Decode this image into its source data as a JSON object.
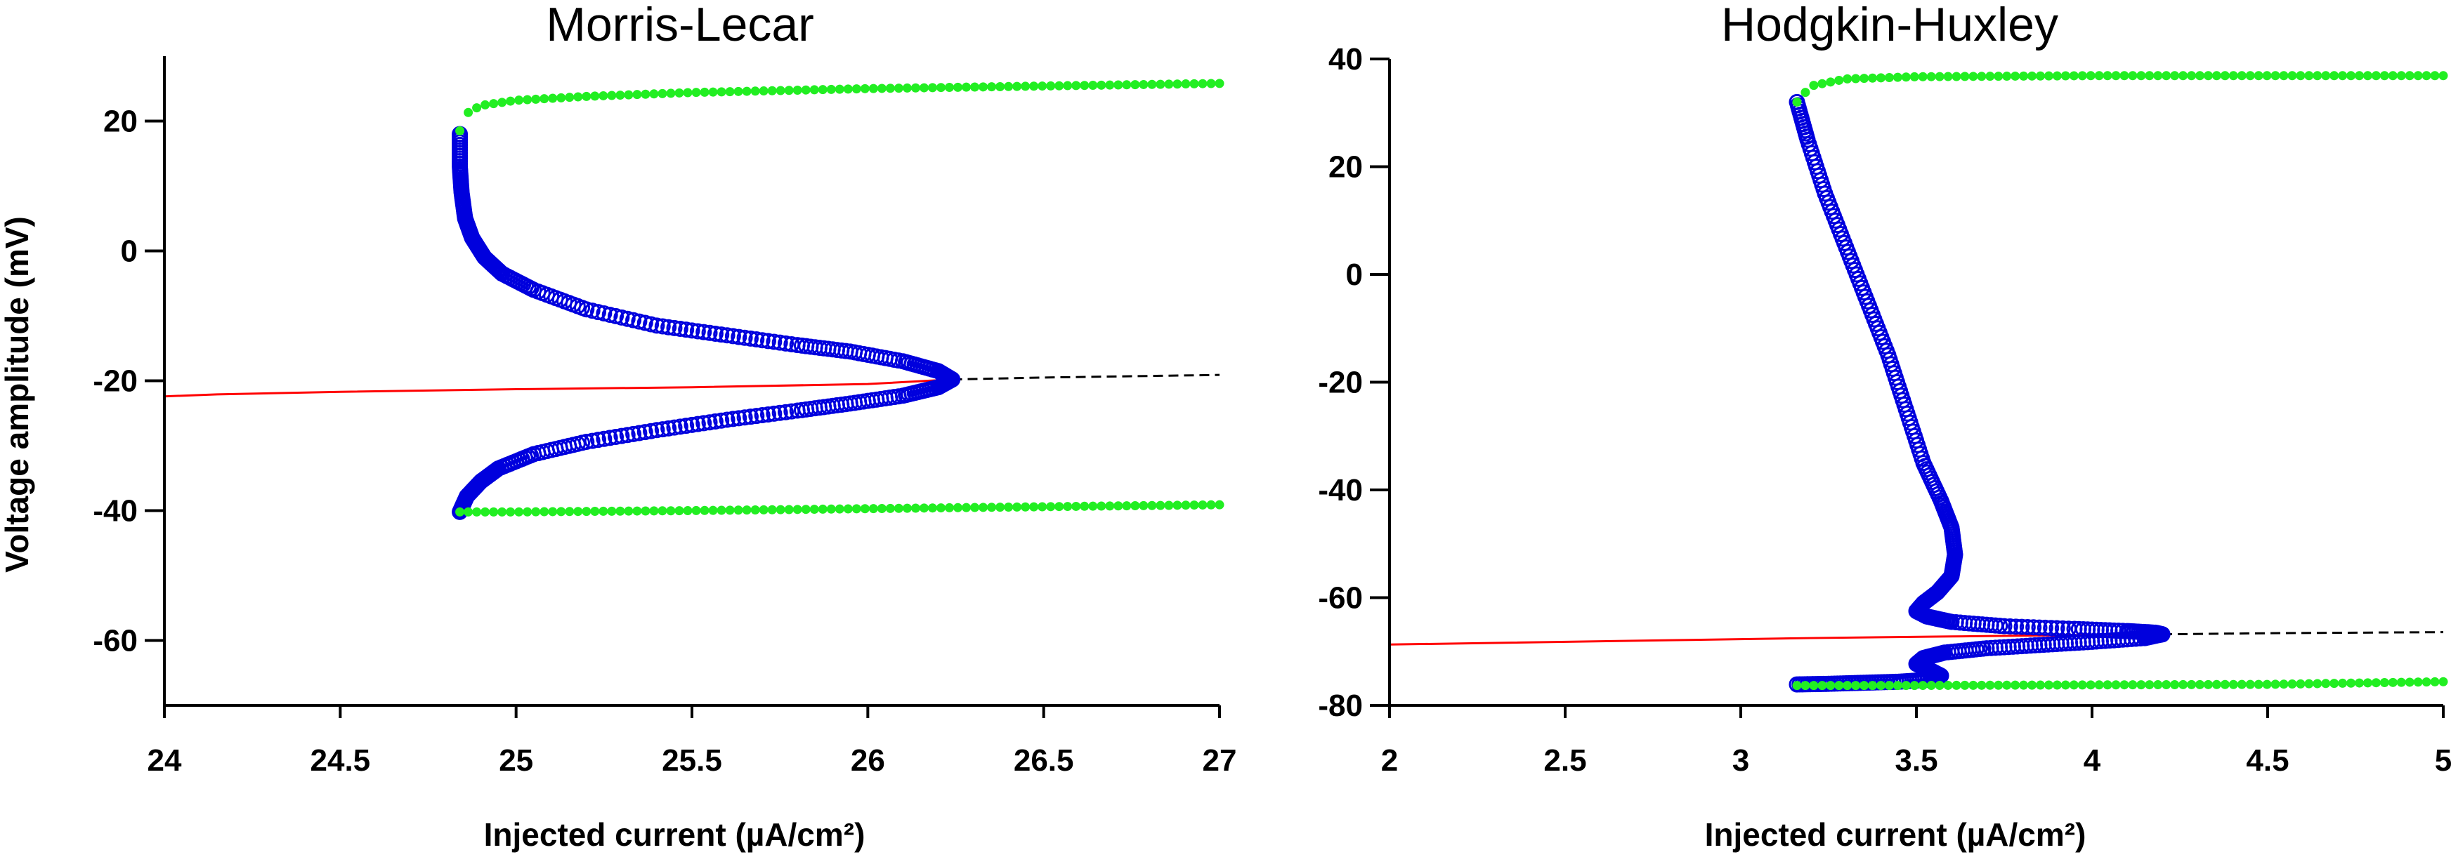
{
  "chart_data": [
    {
      "type": "scatter",
      "title": "Morris-Lecar",
      "xlabel": "Injected current (µA/cm²)",
      "ylabel": "Voltage amplitude (mV)",
      "xlim": [
        24,
        27
      ],
      "ylim": [
        -70,
        30
      ],
      "x_ticks": [
        24,
        24.5,
        25,
        25.5,
        26,
        26.5,
        27
      ],
      "y_ticks": [
        20,
        0,
        -20,
        -40,
        -60
      ],
      "colors": {
        "stable_rest": "#ff0000",
        "unstable_rest": "#000000",
        "unstable_cycle": "#0000dd",
        "stable_cycle": "#22ee22"
      },
      "stable_rest": {
        "x": [
          24.0,
          24.15,
          24.5,
          25.0,
          25.5,
          26.0,
          26.24
        ],
        "y": [
          -22.4,
          -22.1,
          -21.7,
          -21.3,
          -21.0,
          -20.5,
          -19.8
        ]
      },
      "unstable_rest": {
        "x": [
          26.24,
          26.5,
          27.0
        ],
        "y": [
          -19.8,
          -19.5,
          -19.1
        ]
      },
      "unstable_cycle_upper": {
        "x": [
          24.84,
          24.84,
          24.845,
          24.855,
          24.875,
          24.91,
          24.96,
          25.05,
          25.2,
          25.4,
          25.6,
          25.8,
          25.95,
          26.1,
          26.2,
          26.24
        ],
        "y": [
          18,
          13,
          9,
          5,
          2,
          -1,
          -3.5,
          -6,
          -9,
          -11.5,
          -13,
          -14.5,
          -15.5,
          -17,
          -18.5,
          -19.8
        ]
      },
      "unstable_cycle_lower": {
        "x": [
          26.24,
          26.2,
          26.1,
          25.95,
          25.8,
          25.6,
          25.4,
          25.2,
          25.05,
          24.95,
          24.9,
          24.86,
          24.84
        ],
        "y": [
          -19.8,
          -21,
          -22.3,
          -23.5,
          -24.6,
          -26,
          -27.6,
          -29.4,
          -31.3,
          -33.5,
          -35.5,
          -37.8,
          -40.2
        ]
      },
      "stable_cycle_max": {
        "x": [
          24.84,
          24.86,
          24.9,
          25.0,
          25.2,
          25.5,
          26.0,
          26.5,
          27.0
        ],
        "y": [
          18.5,
          21.2,
          22.4,
          23.2,
          23.8,
          24.4,
          25.0,
          25.4,
          25.8
        ]
      },
      "stable_cycle_min": {
        "x": [
          24.84,
          24.9,
          25.0,
          25.5,
          26.0,
          26.5,
          27.0
        ],
        "y": [
          -40.2,
          -40.2,
          -40.2,
          -40.0,
          -39.7,
          -39.4,
          -39.1
        ]
      }
    },
    {
      "type": "scatter",
      "title": "Hodgkin-Huxley",
      "xlabel": "Injected current (µA/cm²)",
      "ylabel": "",
      "xlim": [
        2,
        5
      ],
      "ylim": [
        -80,
        40
      ],
      "x_ticks": [
        2,
        2.5,
        3,
        3.5,
        4,
        4.5,
        5
      ],
      "y_ticks": [
        40,
        20,
        0,
        -20,
        -40,
        -60,
        -80
      ],
      "colors": {
        "stable_rest": "#ff0000",
        "unstable_rest": "#000000",
        "unstable_cycle": "#0000dd",
        "stable_cycle": "#22ee22"
      },
      "stable_rest": {
        "x": [
          2.0,
          2.3,
          2.8,
          3.2,
          3.6,
          4.0,
          4.2
        ],
        "y": [
          -68.7,
          -68.4,
          -67.9,
          -67.5,
          -67.2,
          -66.9,
          -66.8
        ]
      },
      "unstable_rest": {
        "x": [
          4.2,
          4.5,
          5.0
        ],
        "y": [
          -66.8,
          -66.6,
          -66.4
        ]
      },
      "unstable_cycle_upper": {
        "x": [
          3.16,
          3.19,
          3.24,
          3.3,
          3.36,
          3.42,
          3.47,
          3.52,
          3.57,
          3.6,
          3.61,
          3.6,
          3.56,
          3.52,
          3.5,
          3.53,
          3.6,
          3.75,
          3.95,
          4.1,
          4.18,
          4.2
        ],
        "y": [
          32,
          25,
          15,
          5,
          -5,
          -15,
          -25,
          -35,
          -42,
          -47,
          -52,
          -56,
          -59,
          -61,
          -62.5,
          -63.5,
          -64.5,
          -65.3,
          -65.8,
          -66.2,
          -66.5,
          -66.8
        ]
      },
      "unstable_cycle_lower": {
        "x": [
          4.2,
          4.15,
          4.0,
          3.85,
          3.7,
          3.58,
          3.52,
          3.5,
          3.54,
          3.57,
          3.54,
          3.45,
          3.35,
          3.25,
          3.16
        ],
        "y": [
          -66.8,
          -67.5,
          -68.2,
          -68.8,
          -69.4,
          -70.2,
          -71.2,
          -72.3,
          -73.5,
          -74.5,
          -75.2,
          -75.6,
          -75.8,
          -76,
          -76.1
        ]
      },
      "stable_cycle_max": {
        "x": [
          3.16,
          3.2,
          3.3,
          3.5,
          4.0,
          4.5,
          5.0
        ],
        "y": [
          32,
          35,
          36.3,
          36.7,
          36.9,
          36.9,
          36.9
        ]
      },
      "stable_cycle_min": {
        "x": [
          3.16,
          3.3,
          3.5,
          4.0,
          4.5,
          5.0
        ],
        "y": [
          -76.3,
          -76.3,
          -76.3,
          -76.2,
          -76.1,
          -75.6
        ]
      }
    }
  ]
}
